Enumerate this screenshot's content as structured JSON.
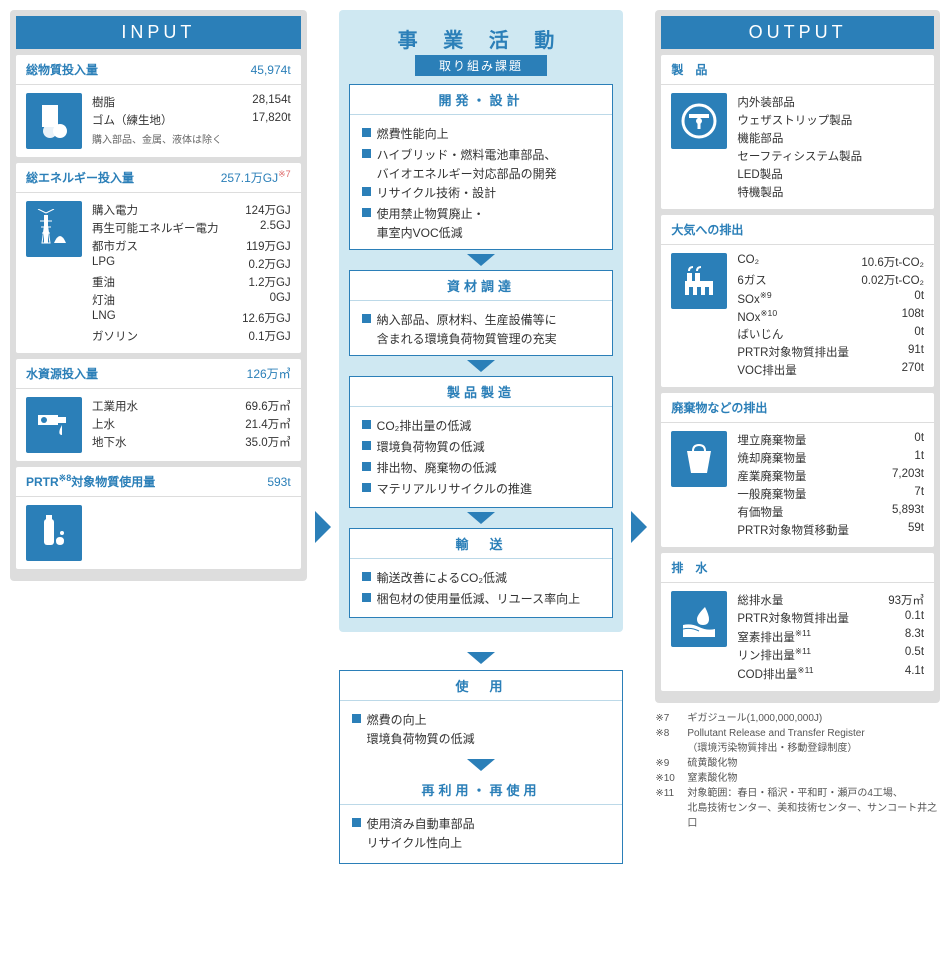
{
  "input": {
    "header": "INPUT",
    "sections": [
      {
        "title": "総物質投入量",
        "total": "45,974t",
        "icon": "materials",
        "rows": [
          {
            "label": "樹脂",
            "value": "28,154t"
          },
          {
            "label": "ゴム（練生地）",
            "value": "17,820t"
          }
        ],
        "note": "購入部品、金属、液体は除く"
      },
      {
        "title": "総エネルギー投入量",
        "total": "257.1万GJ",
        "total_sup": "※7",
        "icon": "energy",
        "rows": [
          {
            "label": "購入電力",
            "value": "124万GJ"
          },
          {
            "label": "再生可能エネルギー電力",
            "value": "2.5GJ"
          },
          {
            "label": "都市ガス",
            "value": "119万GJ"
          },
          {
            "label": "LPG",
            "value": "0.2万GJ"
          },
          {
            "label": "重油",
            "value": "1.2万GJ"
          },
          {
            "label": "灯油",
            "value": "0GJ"
          },
          {
            "label": "LNG",
            "value": "12.6万GJ"
          },
          {
            "label": "ガソリン",
            "value": "0.1万GJ"
          }
        ]
      },
      {
        "title": "水資源投入量",
        "total": "126万㎥",
        "icon": "water",
        "rows": [
          {
            "label": "工業用水",
            "value": "69.6万㎥"
          },
          {
            "label": "上水",
            "value": "21.4万㎥"
          },
          {
            "label": "地下水",
            "value": "35.0万㎥"
          }
        ]
      },
      {
        "title_html": "PRTR<sup>※8</sup>対象物質使用量",
        "title_parts": {
          "pre": "PRTR",
          "sup": "※8",
          "post": "対象物質使用量"
        },
        "total": "593t",
        "icon": "chemical",
        "rows": []
      }
    ]
  },
  "middle": {
    "title": "事 業 活 動",
    "sub": "取り組み課題",
    "boxes_upper": [
      {
        "title": "開発・設計",
        "items": [
          {
            "text": "燃費性能向上"
          },
          {
            "text": "ハイブリッド・燃料電池車部品、",
            "sub": "バイオエネルギー対応部品の開発"
          },
          {
            "text": "リサイクル技術・設計"
          },
          {
            "text": "使用禁止物質廃止・",
            "sub": "車室内VOC低減"
          }
        ]
      },
      {
        "title": "資材調達",
        "items": [
          {
            "text": "納入部品、原材料、生産設備等に",
            "sub": "含まれる環境負荷物質管理の充実"
          }
        ]
      },
      {
        "title": "製品製造",
        "items": [
          {
            "text": "CO₂排出量の低減"
          },
          {
            "text": "環境負荷物質の低減"
          },
          {
            "text": "排出物、廃棄物の低減"
          },
          {
            "text": "マテリアルリサイクルの推進"
          }
        ]
      },
      {
        "title": "輸　送",
        "items": [
          {
            "text": "輸送改善によるCO₂低減"
          },
          {
            "text": "梱包材の使用量低減、リユース率向上"
          }
        ]
      }
    ],
    "boxes_lower": [
      {
        "title": "使　用",
        "items": [
          {
            "text": "燃費の向上",
            "sub": "環境負荷物質の低減"
          }
        ]
      },
      {
        "title": "再利用・再使用",
        "items": [
          {
            "text": "使用済み自動車部品",
            "sub": "リサイクル性向上"
          }
        ]
      }
    ]
  },
  "output": {
    "header": "OUTPUT",
    "sections": [
      {
        "title": "製　品",
        "icon": "product",
        "rows": [
          {
            "label": "内外装部品",
            "value": ""
          },
          {
            "label": "ウェザストリップ製品",
            "value": ""
          },
          {
            "label": "機能部品",
            "value": ""
          },
          {
            "label": "セーフティシステム製品",
            "value": ""
          },
          {
            "label": "LED製品",
            "value": ""
          },
          {
            "label": "特機製品",
            "value": ""
          }
        ]
      },
      {
        "title": "大気への排出",
        "icon": "air",
        "rows": [
          {
            "label": "CO₂",
            "value": "10.6万t-CO₂"
          },
          {
            "label": "6ガス",
            "value": "0.02万t-CO₂"
          },
          {
            "label_html": "SOx<sup>※9</sup>",
            "label": "SOx",
            "sup": "※9",
            "value": "0t"
          },
          {
            "label_html": "NOx<sup>※10</sup>",
            "label": "NOx",
            "sup": "※10",
            "value": "108t"
          },
          {
            "label": "ばいじん",
            "value": "0t"
          },
          {
            "label": "PRTR対象物質排出量",
            "value": "91t"
          },
          {
            "label": "VOC排出量",
            "value": "270t"
          }
        ]
      },
      {
        "title": "廃棄物などの排出",
        "icon": "waste",
        "rows": [
          {
            "label": "埋立廃棄物量",
            "value": "0t"
          },
          {
            "label": "焼却廃棄物量",
            "value": "1t"
          },
          {
            "label": "産業廃棄物量",
            "value": "7,203t"
          },
          {
            "label": "一般廃棄物量",
            "value": "7t"
          },
          {
            "label": "有価物量",
            "value": "5,893t"
          },
          {
            "label": "PRTR対象物質移動量",
            "value": "59t"
          }
        ]
      },
      {
        "title": "排　水",
        "icon": "drain",
        "rows": [
          {
            "label": "総排水量",
            "value": "93万㎥"
          },
          {
            "label": "PRTR対象物質排出量",
            "value": "0.1t"
          },
          {
            "label_html": "窒素排出量<sup>※11</sup>",
            "label": "窒素排出量",
            "sup": "※11",
            "value": "8.3t"
          },
          {
            "label_html": "リン排出量<sup>※11</sup>",
            "label": "リン排出量",
            "sup": "※11",
            "value": "0.5t"
          },
          {
            "label_html": "COD排出量<sup>※11</sup>",
            "label": "COD排出量",
            "sup": "※11",
            "value": "4.1t"
          }
        ]
      }
    ]
  },
  "footnotes": [
    {
      "mark": "※7",
      "text": "ギガジュール(1,000,000,000J)"
    },
    {
      "mark": "※8",
      "text": "Pollutant Release and Transfer Register\n（環境汚染物質排出・移動登録制度）"
    },
    {
      "mark": "※9",
      "text": "硫黄酸化物"
    },
    {
      "mark": "※10",
      "text": "窒素酸化物"
    },
    {
      "mark": "※11",
      "text": "対象範囲：春日・稲沢・平和町・瀬戸の4工場、\n北島技術センター、美和技術センター、サンコート井之口"
    }
  ],
  "colors": {
    "primary": "#2b7fb8",
    "light_bg": "#cfe8f2",
    "panel_bg": "#dddddd",
    "white": "#ffffff",
    "text": "#333333"
  }
}
